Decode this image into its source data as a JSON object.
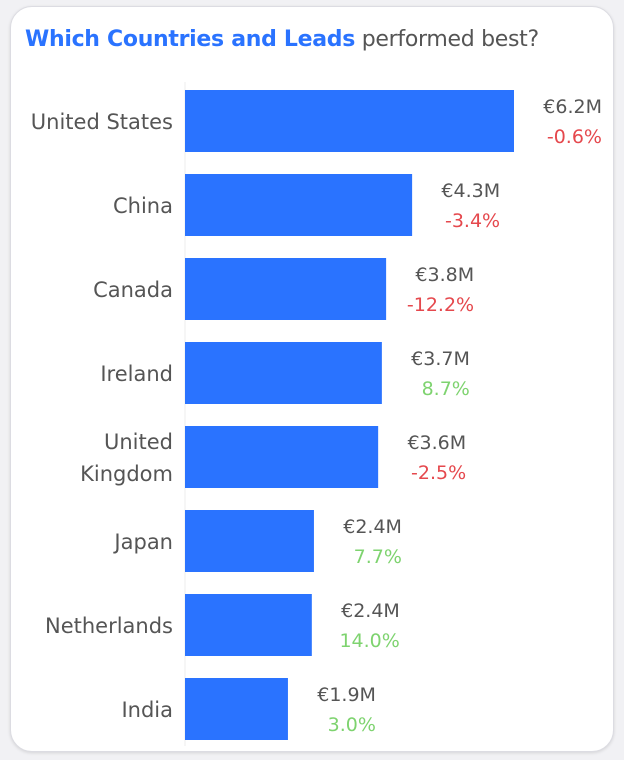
{
  "chart_data": {
    "type": "bar",
    "orientation": "horizontal",
    "title_highlight": "Which Countries and Leads",
    "title_rest": "performed best?",
    "categories": [
      [
        "United States"
      ],
      [
        "China"
      ],
      [
        "Canada"
      ],
      [
        "Ireland"
      ],
      [
        "United",
        "Kingdom"
      ],
      [
        "Japan"
      ],
      [
        "Netherlands"
      ],
      [
        "India"
      ]
    ],
    "values": [
      6.2,
      4.28,
      3.79,
      3.71,
      3.64,
      2.43,
      2.39,
      1.94
    ],
    "value_labels": [
      "€6.2M",
      "€4.3M",
      "€3.8M",
      "€3.7M",
      "€3.6M",
      "€2.4M",
      "€2.4M",
      "€1.9M"
    ],
    "change_labels": [
      "-0.6%",
      "-3.4%",
      "-12.2%",
      "8.7%",
      "-2.5%",
      "7.7%",
      "14.0%",
      "3.0%"
    ],
    "unit": "€M",
    "xlim": [
      0,
      6.2
    ],
    "grid": false,
    "colors": {
      "bar": "#2a73ff",
      "negative": "#e5484d",
      "positive": "#7ed36f",
      "highlight": "#2a73ff"
    }
  }
}
